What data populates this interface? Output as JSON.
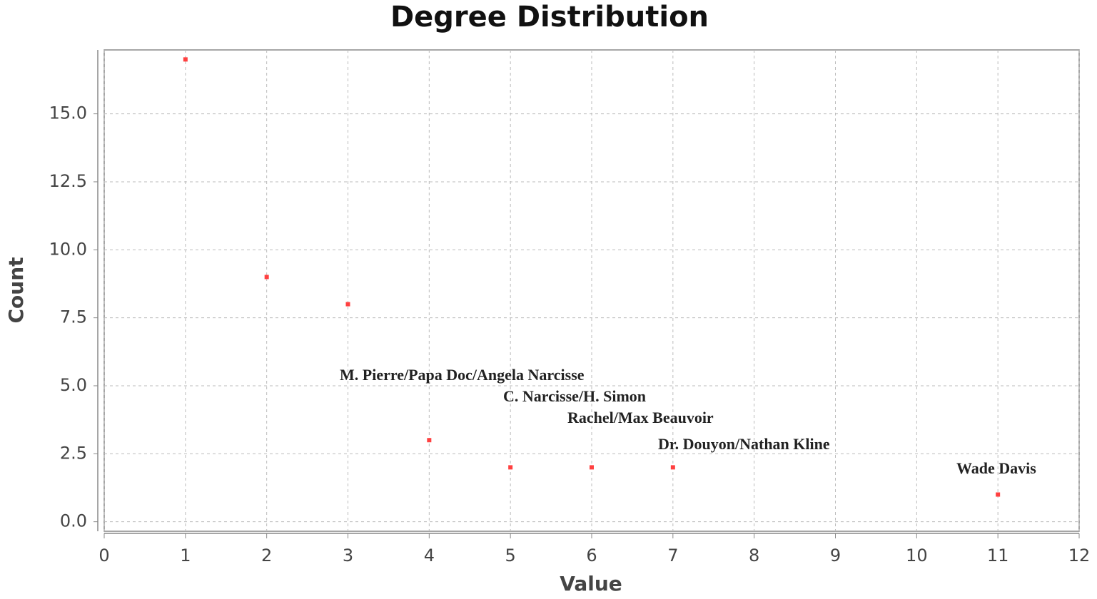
{
  "chart_data": {
    "type": "scatter",
    "title": "Degree Distribution",
    "x_label": "Value",
    "y_label": "Count",
    "x": [
      1,
      2,
      3,
      4,
      5,
      6,
      7,
      11
    ],
    "values": [
      17,
      9,
      8,
      3,
      2,
      2,
      2,
      1
    ],
    "color": "#ff4040",
    "xlim": [
      0,
      12
    ],
    "xticks": [
      0,
      1,
      2,
      3,
      4,
      5,
      6,
      7,
      8,
      9,
      10,
      11,
      12
    ],
    "ylim": [
      -0.35,
      17.35
    ],
    "yticks": [
      {
        "value": 0,
        "label": "0.0"
      },
      2.5,
      {
        "value": 5,
        "label": "5.0"
      },
      7.5,
      {
        "value": 10,
        "label": "10.0"
      },
      12.5,
      {
        "value": 15,
        "label": "15.0"
      }
    ],
    "grid": true,
    "annotations": [
      "M. Pierre/Papa Doc/Angela Narcisse",
      "C. Narcisse/H. Simon",
      "Rachel/Max Beauvoir",
      "Dr. Douyon/Nathan Kline",
      "Wade Davis"
    ]
  }
}
